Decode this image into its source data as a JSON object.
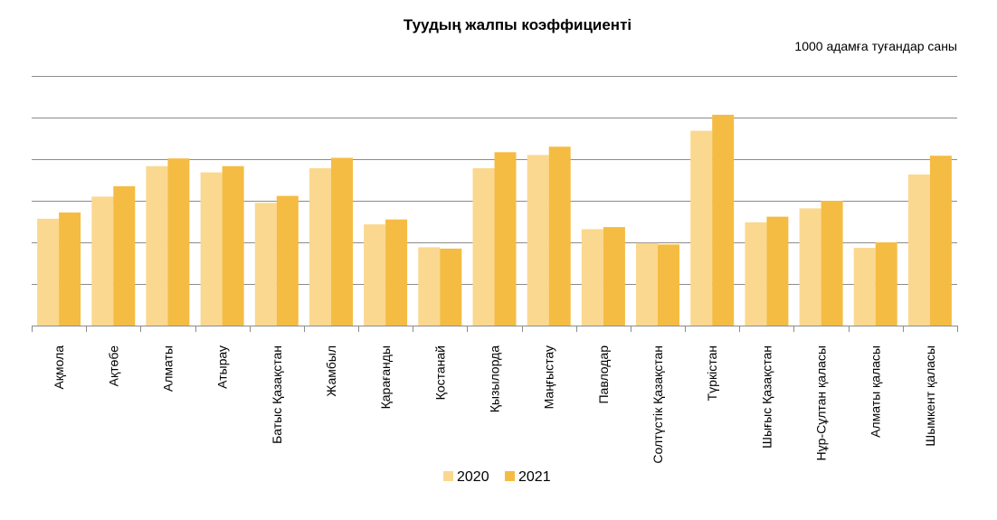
{
  "chart_data": {
    "type": "bar",
    "title": "Туудың жалпы коэффициенті",
    "subtitle": "1000 адамға туғандар саны",
    "categories": [
      "Ақмола",
      "Ақтөбе",
      "Алматы",
      "Атырау",
      "Батыс Қазақстан",
      "Жамбыл",
      "Қарағанды",
      "Қостанай",
      "Қызылорда",
      "Маңғыстау",
      "Павлодар",
      "Солтүстік Қазақстан",
      "Түркістан",
      "Шығыс Қазақстан",
      "Нұр-Сұлтан қаласы",
      "Алматы қаласы",
      "Шымкент қаласы"
    ],
    "series": [
      {
        "name": "2020",
        "color": "#FBD88F",
        "values": [
          15.4,
          18.6,
          23.0,
          22.1,
          17.7,
          22.7,
          14.6,
          11.3,
          22.7,
          24.6,
          13.9,
          11.9,
          28.1,
          14.9,
          16.9,
          11.2,
          21.8
        ]
      },
      {
        "name": "2021",
        "color": "#F5BC43",
        "values": [
          16.3,
          20.1,
          24.1,
          23.0,
          18.7,
          24.2,
          15.3,
          11.1,
          25.0,
          25.8,
          14.2,
          11.7,
          30.4,
          15.7,
          18.0,
          12.0,
          24.5
        ]
      }
    ],
    "ylim": [
      0,
      36
    ],
    "grid": true,
    "legend": "bottom"
  }
}
